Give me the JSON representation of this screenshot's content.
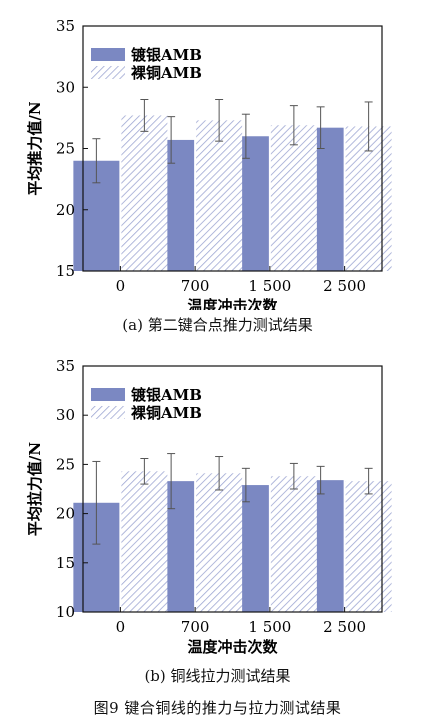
{
  "chart_data": [
    {
      "type": "bar",
      "panel_caption": "(a) 第二键合点推力测试结果",
      "categories": [
        "0",
        "700",
        "1 500",
        "2 500"
      ],
      "xlabel": "温度冲击次数",
      "ylabel": "平均推力值/N",
      "ylim": [
        15,
        35
      ],
      "yticks": [
        "15",
        "20",
        "25",
        "30",
        "35"
      ],
      "grid": false,
      "legend_position": "top-left",
      "series": [
        {
          "name": "镀银AMB",
          "values": [
            24.0,
            25.7,
            26.0,
            26.7
          ],
          "err": [
            1.8,
            1.9,
            1.8,
            1.7
          ],
          "color": "#7b88c2",
          "pattern": "solid"
        },
        {
          "name": "裸铜AMB",
          "values": [
            27.7,
            27.3,
            26.9,
            26.8
          ],
          "err": [
            1.3,
            1.7,
            1.6,
            2.0
          ],
          "color": "#9ea7d3",
          "pattern": "hatch"
        }
      ]
    },
    {
      "type": "bar",
      "panel_caption": "(b) 铜线拉力测试结果",
      "categories": [
        "0",
        "700",
        "1 500",
        "2 500"
      ],
      "xlabel": "温度冲击次数",
      "ylabel": "平均拉力值/N",
      "ylim": [
        10,
        35
      ],
      "yticks": [
        "10",
        "15",
        "20",
        "25",
        "30",
        "35"
      ],
      "grid": false,
      "legend_position": "top-left",
      "series": [
        {
          "name": "镀银AMB",
          "values": [
            21.1,
            23.3,
            22.9,
            23.4
          ],
          "err": [
            4.2,
            2.8,
            1.7,
            1.4
          ],
          "color": "#7b88c2",
          "pattern": "solid"
        },
        {
          "name": "裸铜AMB",
          "values": [
            24.3,
            24.1,
            23.8,
            23.3
          ],
          "err": [
            1.3,
            1.7,
            1.3,
            1.3
          ],
          "color": "#9ea7d3",
          "pattern": "hatch"
        }
      ]
    }
  ],
  "figure_caption": "图9   键合铜线的推力与拉力测试结果"
}
